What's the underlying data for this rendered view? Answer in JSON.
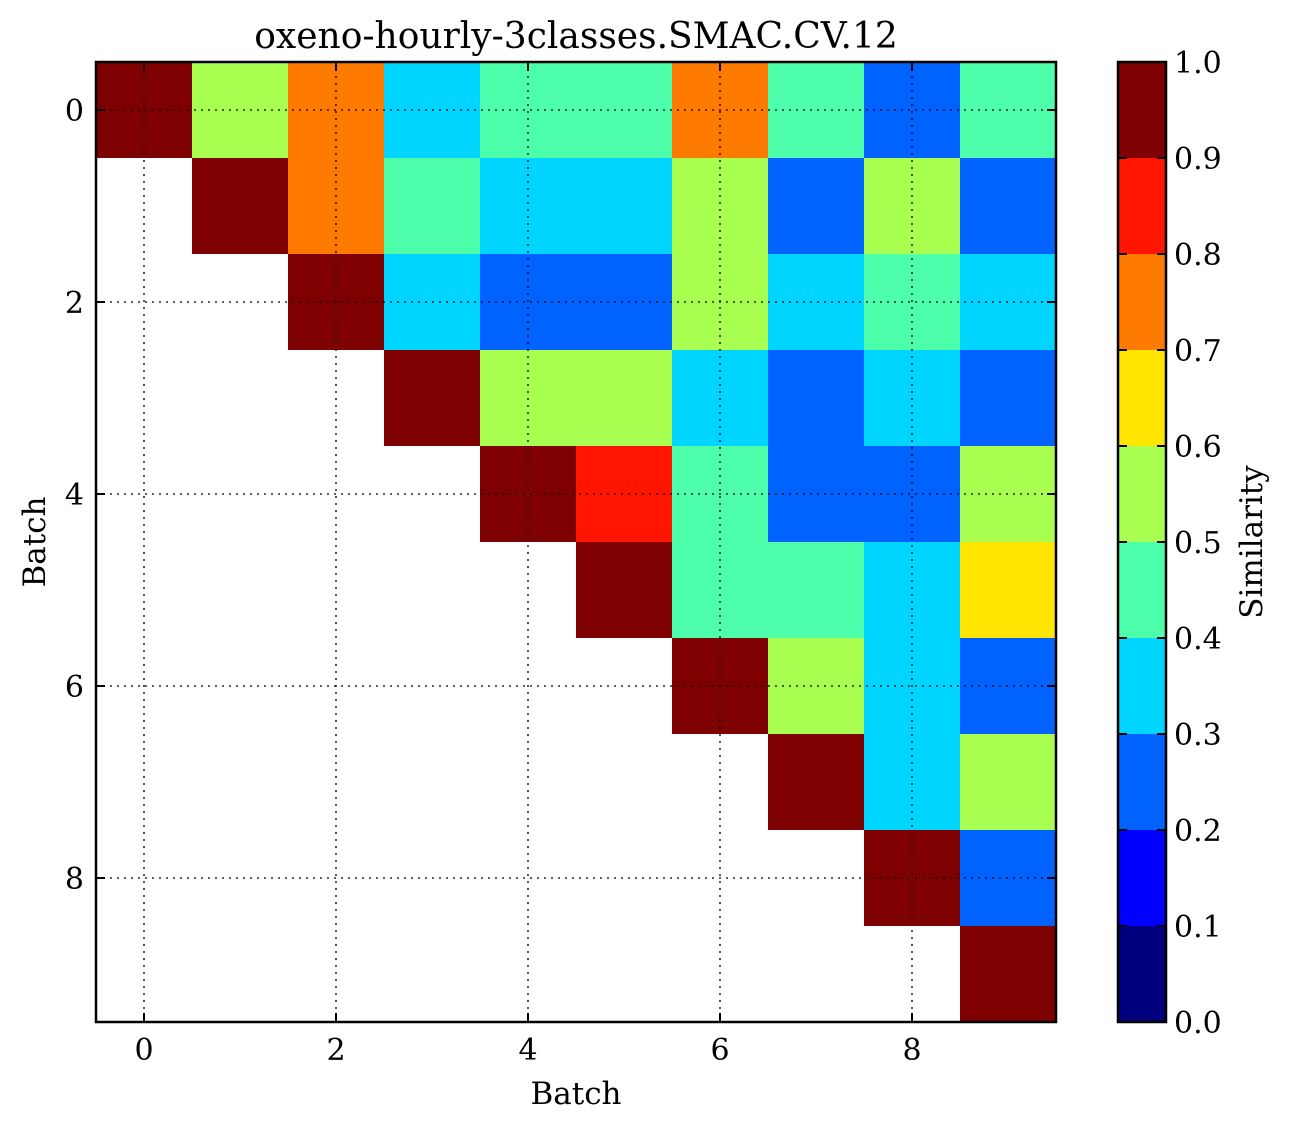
{
  "chart_data": {
    "type": "heatmap",
    "title": "oxeno-hourly-3classes.SMAC.CV.12",
    "xlabel": "Batch",
    "ylabel": "Batch",
    "x_ticks": [
      "0",
      "2",
      "4",
      "6",
      "8"
    ],
    "y_ticks": [
      "0",
      "2",
      "4",
      "6",
      "8"
    ],
    "xlim": [
      -0.5,
      9.5
    ],
    "ylim": [
      9.5,
      -0.5
    ],
    "grid": true,
    "rows": [
      [
        1.0,
        0.55,
        0.75,
        0.35,
        0.45,
        0.45,
        0.75,
        0.45,
        0.25,
        0.45
      ],
      [
        null,
        1.0,
        0.75,
        0.45,
        0.35,
        0.35,
        0.55,
        0.25,
        0.55,
        0.25
      ],
      [
        null,
        null,
        1.0,
        0.35,
        0.25,
        0.25,
        0.55,
        0.35,
        0.45,
        0.35
      ],
      [
        null,
        null,
        null,
        1.0,
        0.55,
        0.55,
        0.35,
        0.25,
        0.35,
        0.25
      ],
      [
        null,
        null,
        null,
        null,
        1.0,
        0.85,
        0.45,
        0.25,
        0.25,
        0.55
      ],
      [
        null,
        null,
        null,
        null,
        null,
        1.0,
        0.45,
        0.45,
        0.35,
        0.65
      ],
      [
        null,
        null,
        null,
        null,
        null,
        null,
        1.0,
        0.55,
        0.35,
        0.25
      ],
      [
        null,
        null,
        null,
        null,
        null,
        null,
        null,
        1.0,
        0.35,
        0.55
      ],
      [
        null,
        null,
        null,
        null,
        null,
        null,
        null,
        null,
        1.0,
        0.25
      ],
      [
        null,
        null,
        null,
        null,
        null,
        null,
        null,
        null,
        null,
        1.0
      ]
    ],
    "colorbar": {
      "label": "Similarity",
      "range": [
        0.0,
        1.0
      ],
      "ticks": [
        "0.0",
        "0.1",
        "0.2",
        "0.3",
        "0.4",
        "0.5",
        "0.6",
        "0.7",
        "0.8",
        "0.9",
        "1.0"
      ],
      "bin_colors": [
        "#00007f",
        "#0000ff",
        "#0063ff",
        "#00d5ff",
        "#4dffaa",
        "#a8ff4f",
        "#ffe500",
        "#ff7a00",
        "#ff1500",
        "#7f0000"
      ]
    }
  }
}
